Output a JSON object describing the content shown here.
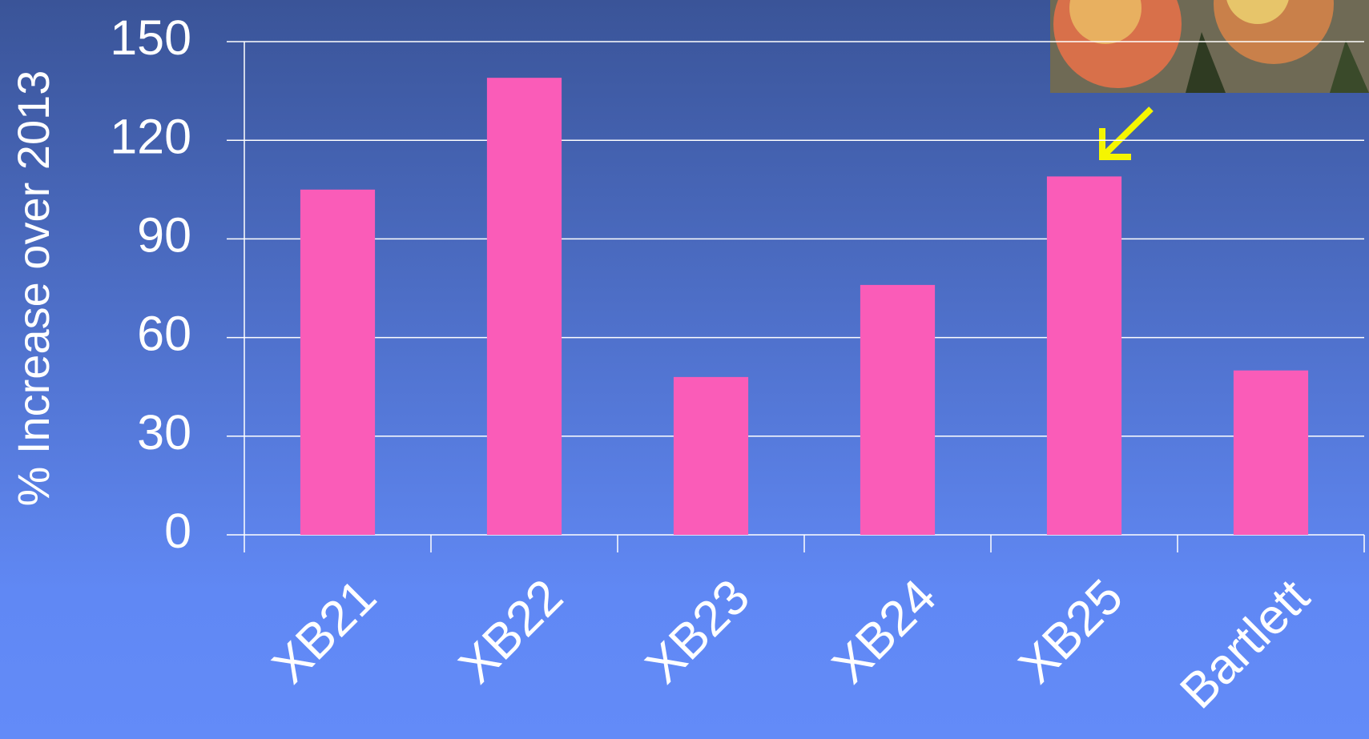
{
  "chart_data": {
    "type": "bar",
    "y_label": "% Increase over 2013",
    "categories": [
      "XB21",
      "XB22",
      "XB23",
      "XB24",
      "XB25",
      "Bartlett"
    ],
    "values": [
      105,
      139,
      48,
      76,
      109,
      50
    ],
    "color": "#fa5cb8",
    "ylim": [
      0,
      150
    ],
    "yticks": [
      0,
      30,
      60,
      90,
      120,
      150
    ],
    "grid": true
  }
}
